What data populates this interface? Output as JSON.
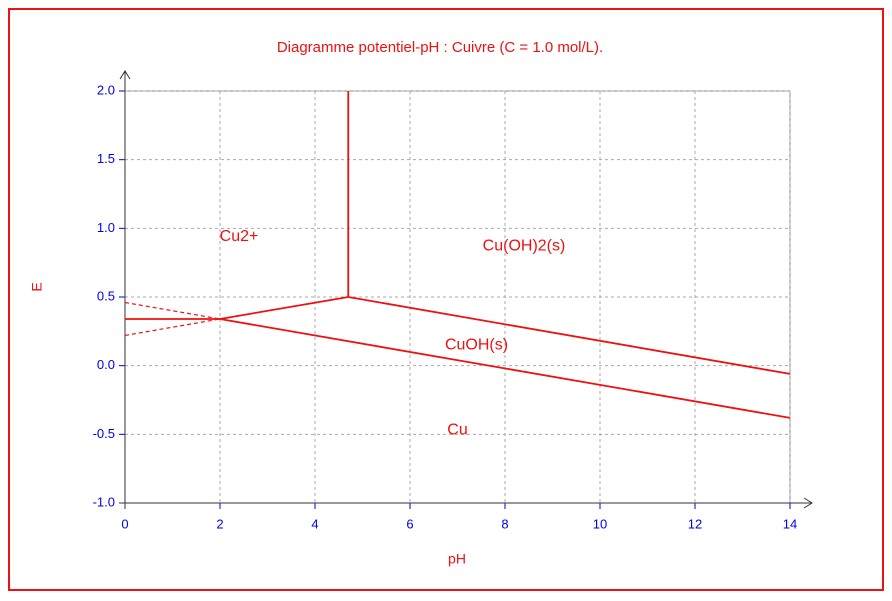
{
  "chart_data": {
    "type": "line",
    "title": "Diagramme potentiel-pH : Cuivre (C = 1.0 mol/L).",
    "x_label": "pH",
    "y_label": "E",
    "xlim": [
      0,
      14
    ],
    "xticks": [
      0,
      2,
      4,
      6,
      8,
      10,
      12,
      14
    ],
    "ylim": [
      -1.0,
      2.0
    ],
    "yticks": [
      {
        "value": -1.0,
        "label": "-1.0"
      },
      {
        "value": -0.5,
        "label": "-0.5"
      },
      {
        "value": 0,
        "label": "0.0"
      },
      0.5,
      {
        "value": 1.0,
        "label": "1.0"
      },
      1.5,
      {
        "value": 2.0,
        "label": "2.0"
      }
    ],
    "grid": true,
    "color": "#ee1111",
    "series": [
      {
        "color": "#ee1111",
        "dash": false,
        "x": [
          0,
          2
        ],
        "values": [
          0.34,
          0.34
        ]
      },
      {
        "color": "#ee1111",
        "dash": true,
        "x": [
          0,
          2
        ],
        "values": [
          0.22,
          0.34
        ]
      },
      {
        "color": "#ee1111",
        "dash": false,
        "x": [
          2,
          4.7
        ],
        "values": [
          0.34,
          0.5
        ]
      },
      {
        "color": "#ee1111",
        "dash": false,
        "x": [
          4.7,
          4.7
        ],
        "values": [
          0.5,
          2.0
        ]
      },
      {
        "color": "#ee1111",
        "dash": false,
        "x": [
          4.7,
          14
        ],
        "values": [
          0.5,
          -0.06
        ]
      },
      {
        "color": "#ee1111",
        "dash": true,
        "x": [
          0,
          2
        ],
        "values": [
          0.46,
          0.34
        ]
      },
      {
        "color": "#ee1111",
        "dash": false,
        "x": [
          2,
          14
        ],
        "values": [
          0.34,
          -0.38
        ]
      }
    ],
    "annotations": [
      {
        "text": "Cu2+",
        "x": 2.4,
        "y": 0.94
      },
      {
        "text": "Cu(OH)2(s)",
        "x": 8.4,
        "y": 0.87
      },
      {
        "text": "CuOH(s)",
        "x": 7.4,
        "y": 0.15
      },
      {
        "text": "Cu",
        "x": 7.0,
        "y": -0.47
      }
    ]
  }
}
